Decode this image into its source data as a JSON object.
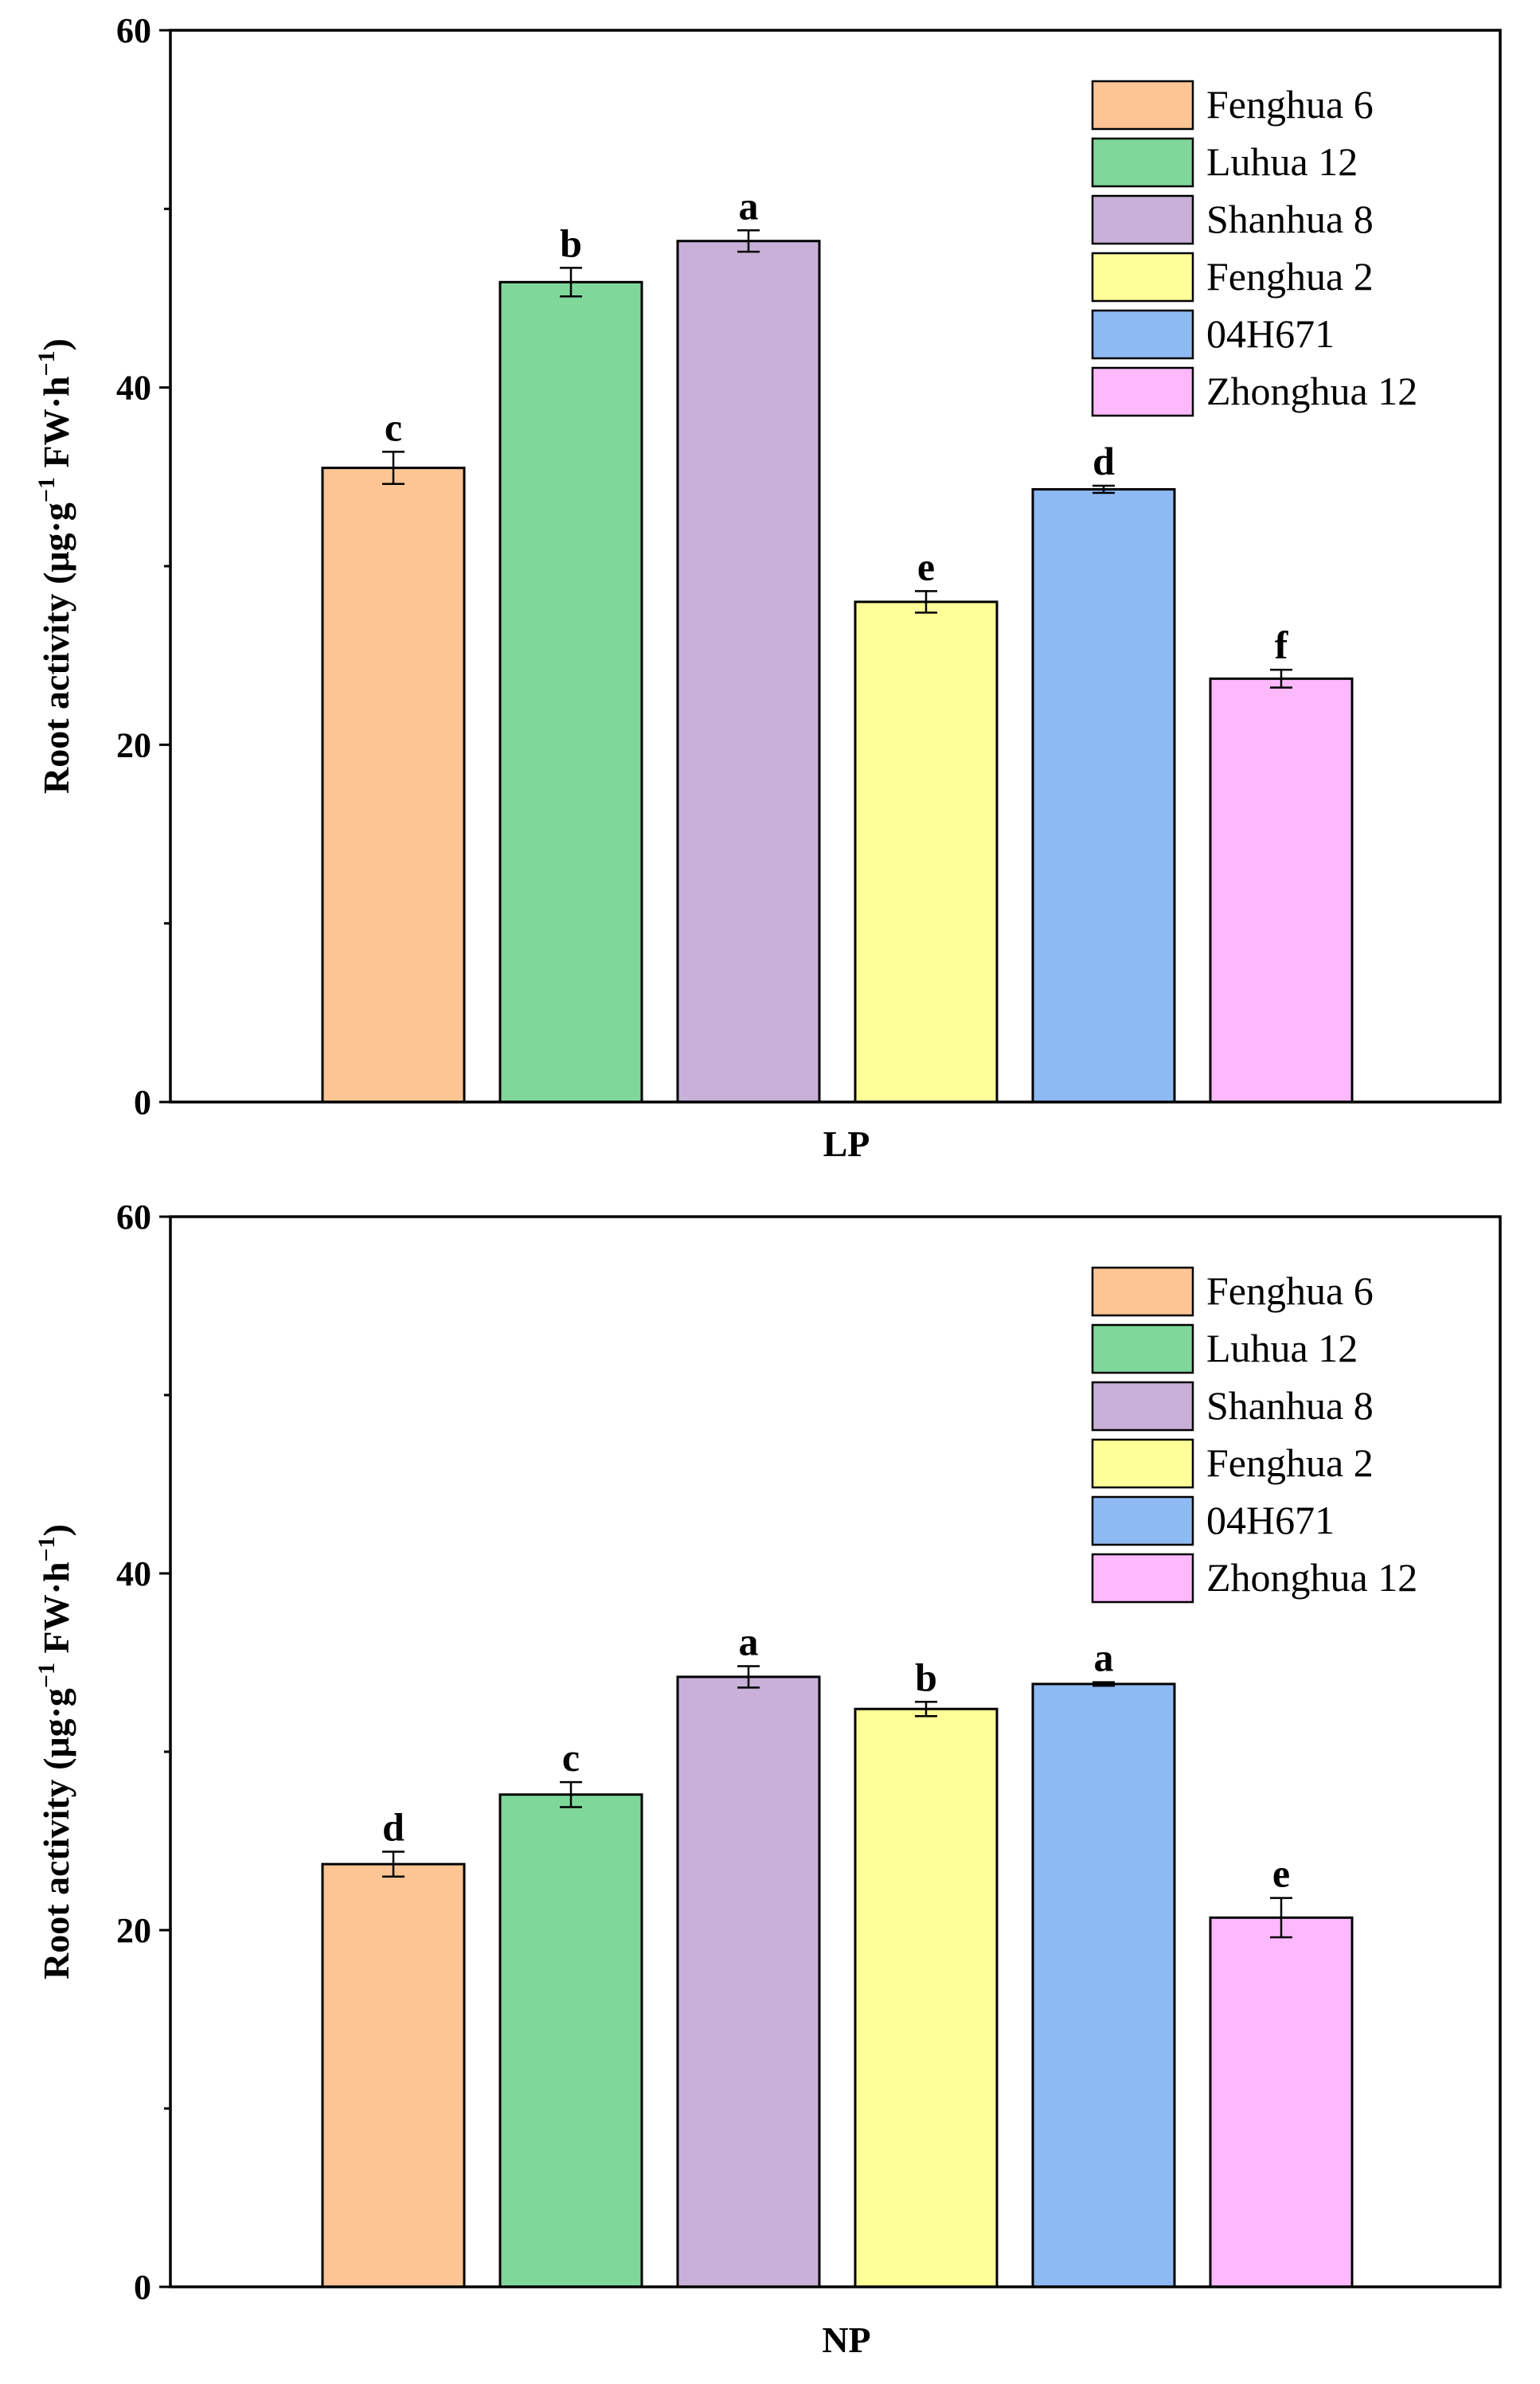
{
  "chart_data": [
    {
      "type": "bar",
      "panel": "LP",
      "xlabel": "LP",
      "ylabel": "Root activity (μg·g",
      "ylabel_sup1": "−1",
      "ylabel_mid": " FW·h",
      "ylabel_sup2": "−1",
      "ylabel_end": ")",
      "ylim": [
        0,
        60
      ],
      "yticks": [
        0,
        20,
        40,
        60
      ],
      "ytick_labels": [
        "0",
        "20",
        "40",
        "60"
      ],
      "categories": [
        "Fenghua 6",
        "Luhua 12",
        "Shanhua 8",
        "Fenghua 2",
        "04H671",
        "Zhonghua 12"
      ],
      "values": [
        35.5,
        45.9,
        48.2,
        28.0,
        34.3,
        23.7
      ],
      "errors": [
        0.9,
        0.8,
        0.6,
        0.6,
        0.2,
        0.5
      ],
      "significance": [
        "c",
        "b",
        "a",
        "e",
        "d",
        "f"
      ],
      "legend": [
        "Fenghua 6",
        "Luhua 12",
        "Shanhua 8",
        "Fenghua 2",
        "04H671",
        "Zhonghua 12"
      ],
      "legend_position": "top-right"
    },
    {
      "type": "bar",
      "panel": "NP",
      "xlabel": "NP",
      "ylabel": "Root activity (μg·g",
      "ylabel_sup1": "−1",
      "ylabel_mid": " FW·h",
      "ylabel_sup2": "−1",
      "ylabel_end": ")",
      "ylim": [
        0,
        60
      ],
      "yticks": [
        0,
        20,
        40,
        60
      ],
      "ytick_labels": [
        "0",
        "20",
        "40",
        "60"
      ],
      "categories": [
        "Fenghua 6",
        "Luhua 12",
        "Shanhua 8",
        "Fenghua 2",
        "04H671",
        "Zhonghua 12"
      ],
      "values": [
        23.7,
        27.6,
        34.2,
        32.4,
        33.8,
        20.7
      ],
      "errors": [
        0.7,
        0.7,
        0.6,
        0.4,
        0.1,
        1.1
      ],
      "significance": [
        "d",
        "c",
        "a",
        "b",
        "a",
        "e"
      ],
      "legend": [
        "Fenghua 6",
        "Luhua 12",
        "Shanhua 8",
        "Fenghua 2",
        "04H671",
        "Zhonghua 12"
      ],
      "legend_position": "top-right"
    }
  ],
  "colors": {
    "series": [
      "#FDC593",
      "#7FD89A",
      "#C8B0D8",
      "#FFFF99",
      "#8EBAF4",
      "#FDB9FC"
    ],
    "axis": "#000000"
  }
}
